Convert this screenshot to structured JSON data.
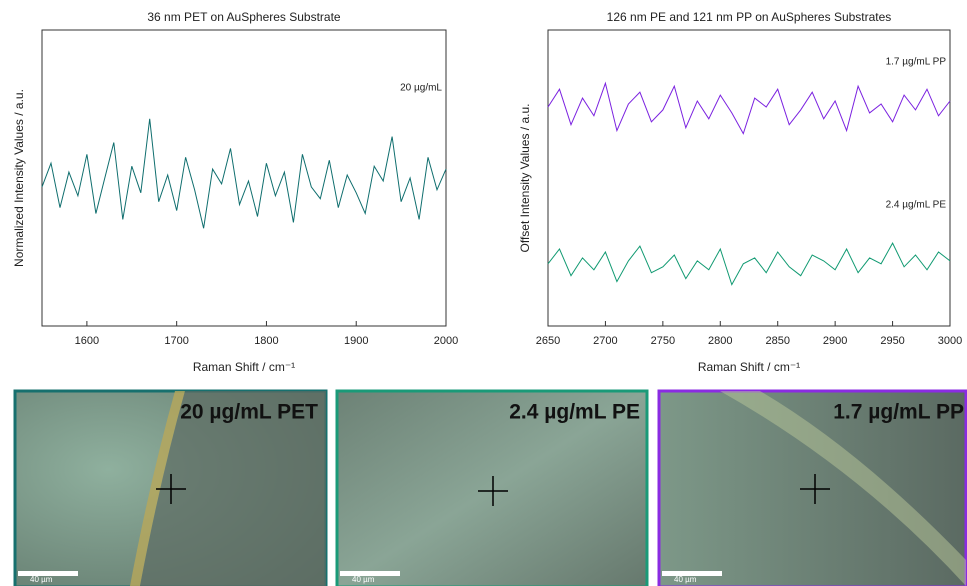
{
  "chart_data": [
    {
      "type": "line",
      "title": "36 nm PET on AuSpheres Substrate",
      "x_label": "Raman Shift / cm⁻¹",
      "y_label": "Normalized Intensity Values / a.u.",
      "annotations": [
        "20 µg/mL"
      ],
      "x": [
        1550,
        1560,
        1570,
        1580,
        1590,
        1600,
        1610,
        1620,
        1630,
        1640,
        1650,
        1660,
        1670,
        1680,
        1690,
        1700,
        1710,
        1720,
        1730,
        1740,
        1750,
        1760,
        1770,
        1780,
        1790,
        1800,
        1810,
        1820,
        1830,
        1840,
        1850,
        1860,
        1870,
        1880,
        1890,
        1900,
        1910,
        1920,
        1930,
        1940,
        1950,
        1960,
        1970,
        1980,
        1990,
        2000
      ],
      "series": [
        {
          "name": "20 µg/mL",
          "color": "#0f6e6e",
          "values": [
            0.47,
            0.55,
            0.4,
            0.52,
            0.44,
            0.58,
            0.38,
            0.5,
            0.62,
            0.36,
            0.54,
            0.45,
            0.7,
            0.42,
            0.51,
            0.39,
            0.57,
            0.46,
            0.33,
            0.53,
            0.48,
            0.6,
            0.41,
            0.49,
            0.37,
            0.55,
            0.44,
            0.52,
            0.35,
            0.58,
            0.47,
            0.43,
            0.56,
            0.4,
            0.51,
            0.45,
            0.38,
            0.54,
            0.49,
            0.64,
            0.42,
            0.5,
            0.36,
            0.57,
            0.46,
            0.53
          ]
        }
      ],
      "xlim": [
        1550,
        2000
      ],
      "xticks": [
        1600,
        1700,
        1800,
        1900,
        2000
      ],
      "ylim": [
        0,
        1
      ]
    },
    {
      "type": "line",
      "title": "126 nm PE and 121 nm PP on AuSpheres Substrates",
      "x_label": "Raman Shift / cm⁻¹",
      "y_label": "Offset Intensity Values / a.u.",
      "annotations": [
        "1.7 µg/mL PP",
        "2.4 µg/mL PE"
      ],
      "x": [
        2650,
        2660,
        2670,
        2680,
        2690,
        2700,
        2710,
        2720,
        2730,
        2740,
        2750,
        2760,
        2770,
        2780,
        2790,
        2800,
        2810,
        2820,
        2830,
        2840,
        2850,
        2860,
        2870,
        2880,
        2890,
        2900,
        2910,
        2920,
        2930,
        2940,
        2950,
        2960,
        2970,
        2980,
        2990,
        3000
      ],
      "series": [
        {
          "name": "1.7 µg/mL PP",
          "color": "#7b22e0",
          "values": [
            0.74,
            0.8,
            0.68,
            0.77,
            0.71,
            0.82,
            0.66,
            0.75,
            0.79,
            0.69,
            0.73,
            0.81,
            0.67,
            0.76,
            0.7,
            0.78,
            0.72,
            0.65,
            0.77,
            0.74,
            0.8,
            0.68,
            0.73,
            0.79,
            0.7,
            0.76,
            0.66,
            0.81,
            0.72,
            0.75,
            0.69,
            0.78,
            0.73,
            0.8,
            0.71,
            0.76
          ]
        },
        {
          "name": "2.4 µg/mL PE",
          "color": "#119a72",
          "values": [
            0.21,
            0.26,
            0.17,
            0.23,
            0.19,
            0.25,
            0.15,
            0.22,
            0.27,
            0.18,
            0.2,
            0.24,
            0.16,
            0.22,
            0.19,
            0.26,
            0.14,
            0.21,
            0.23,
            0.18,
            0.25,
            0.2,
            0.17,
            0.24,
            0.22,
            0.19,
            0.26,
            0.18,
            0.23,
            0.21,
            0.28,
            0.2,
            0.24,
            0.19,
            0.25,
            0.22
          ]
        }
      ],
      "xlim": [
        2650,
        3000
      ],
      "xticks": [
        2650,
        2700,
        2750,
        2800,
        2850,
        2900,
        2950,
        3000
      ],
      "ylim": [
        0,
        1
      ]
    }
  ],
  "micrographs": [
    {
      "label": "20 µg/mL PET",
      "scale_bar": "40 µm"
    },
    {
      "label": "2.4 µg/mL PE",
      "scale_bar": "40 µm"
    },
    {
      "label": "1.7 µg/mL PP",
      "scale_bar": "40 µm"
    }
  ]
}
